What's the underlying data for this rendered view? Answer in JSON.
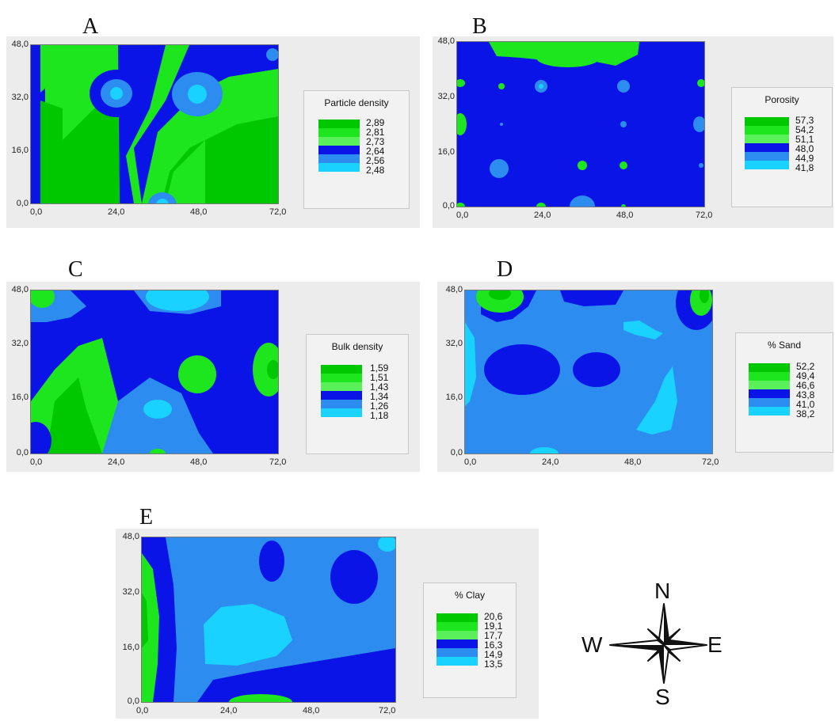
{
  "colors": {
    "c1": "#00c800",
    "c2": "#1ee61e",
    "c3": "#5af05a",
    "c4": "#0a14e6",
    "c5": "#2c8cf0",
    "c6": "#19d2ff",
    "panel_bg": "#ececec"
  },
  "axes": {
    "x_ticks": [
      "0,0",
      "24,0",
      "48,0",
      "72,0"
    ],
    "y_ticks": [
      "48,0",
      "32,0",
      "16,0",
      "0,0"
    ]
  },
  "panels": [
    {
      "letter": "A",
      "legend_title": "Particle density",
      "legend_values": [
        "2,89",
        "2,81",
        "2,73",
        "2,64",
        "2,56",
        "2,48"
      ]
    },
    {
      "letter": "B",
      "legend_title": "Porosity",
      "legend_values": [
        "57,3",
        "54,2",
        "51,1",
        "48,0",
        "44,9",
        "41,8"
      ]
    },
    {
      "letter": "C",
      "legend_title": "Bulk density",
      "legend_values": [
        "1,59",
        "1,51",
        "1,43",
        "1,34",
        "1,26",
        "1,18"
      ]
    },
    {
      "letter": "D",
      "legend_title": "% Sand",
      "legend_values": [
        "52,2",
        "49,4",
        "46,6",
        "43,8",
        "41,0",
        "38,2"
      ]
    },
    {
      "letter": "E",
      "legend_title": "% Clay",
      "legend_values": [
        "20,6",
        "19,1",
        "17,7",
        "16,3",
        "14,9",
        "13,5"
      ]
    }
  ],
  "compass": {
    "n": "N",
    "s": "S",
    "e": "E",
    "w": "W"
  }
}
